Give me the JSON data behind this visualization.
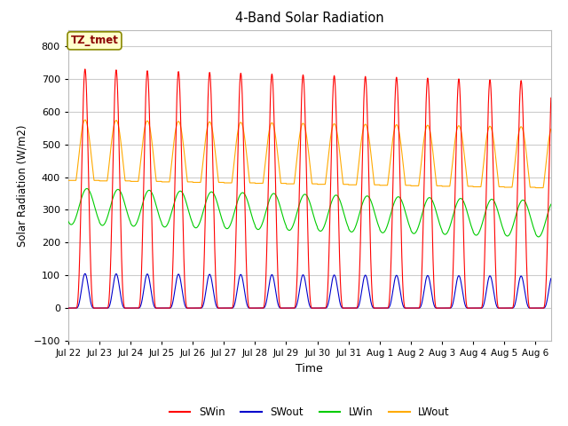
{
  "title": "4-Band Solar Radiation",
  "xlabel": "Time",
  "ylabel": "Solar Radiation (W/m2)",
  "ylim": [
    -100,
    850
  ],
  "yticks": [
    -100,
    0,
    100,
    200,
    300,
    400,
    500,
    600,
    700,
    800
  ],
  "x_tick_labels": [
    "Jul 22",
    "Jul 23",
    "Jul 24",
    "Jul 25",
    "Jul 26",
    "Jul 27",
    "Jul 28",
    "Jul 29",
    "Jul 30",
    "Jul 31",
    "Aug 1",
    "Aug 2",
    "Aug 3",
    "Aug 4",
    "Aug 5",
    "Aug 6"
  ],
  "n_days": 15.5,
  "annotation_text": "TZ_tmet",
  "colors": {
    "SWin": "#ff0000",
    "SWout": "#0000cc",
    "LWin": "#00cc00",
    "LWout": "#ffaa00"
  },
  "fig_bg_color": "#ffffff",
  "plot_bg_color": "#ffffff",
  "grid_color": "#cccccc",
  "legend_labels": [
    "SWin",
    "SWout",
    "LWin",
    "LWout"
  ]
}
